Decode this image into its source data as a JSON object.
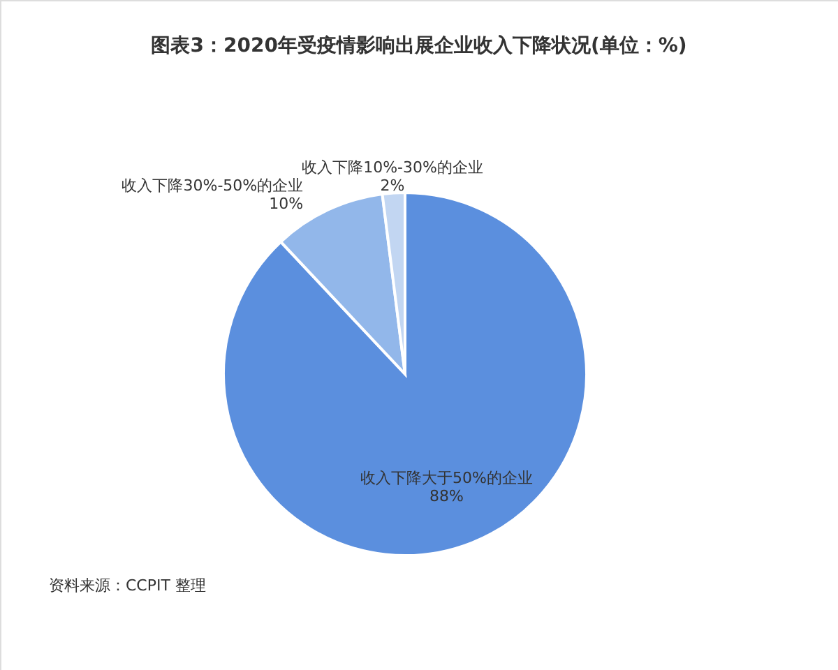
{
  "chart_data": {
    "type": "pie",
    "title": "图表3：2020年受疫情影响出展企业收入下降状况(单位：%)",
    "categories": [
      "收入下降大于50%的企业",
      "收入下降30%-50%的企业",
      "收入下降10%-30%的企业"
    ],
    "values": [
      88,
      10,
      2
    ],
    "colors": [
      "#5b8fde",
      "#92b7ea",
      "#c2d6f2"
    ],
    "legend": false,
    "value_labels": [
      "88%",
      "10%",
      "2%"
    ],
    "annotations": [
      "资料来源：CCPIT 整理"
    ]
  }
}
